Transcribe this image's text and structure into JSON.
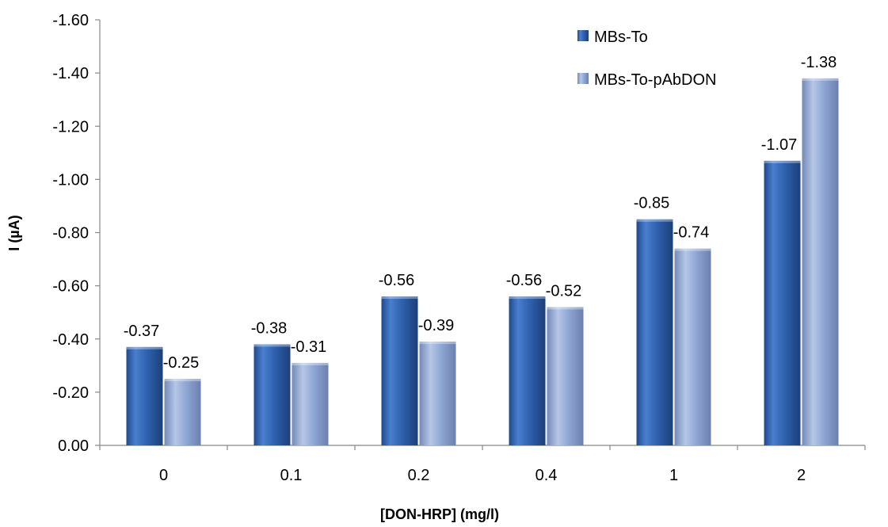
{
  "chart_data": {
    "type": "bar",
    "title": "",
    "xlabel": "[DON-HRP] (mg/l)",
    "ylabel": "I (µA)",
    "categories": [
      "0",
      "0.1",
      "0.2",
      "0.4",
      "1",
      "2"
    ],
    "series": [
      {
        "name": "MBs-To",
        "values": [
          -0.37,
          -0.38,
          -0.56,
          -0.56,
          -0.85,
          -1.07
        ],
        "labels": [
          "-0.37",
          "-0.38",
          "-0.56",
          "-0.56",
          "-0.85",
          "-1.07"
        ],
        "color": "#2f62b0"
      },
      {
        "name": "MBs-To-pAbDON",
        "values": [
          -0.25,
          -0.31,
          -0.39,
          -0.52,
          -0.74,
          -1.38
        ],
        "labels": [
          "-0.25",
          "-0.31",
          "-0.39",
          "-0.52",
          "-0.74",
          "-1.38"
        ],
        "color": "#8fa6d4"
      }
    ],
    "ylim": [
      0,
      -1.6
    ],
    "yticks": [
      "0.00",
      "-0.20",
      "-0.40",
      "-0.60",
      "-0.80",
      "-1.00",
      "-1.20",
      "-1.40",
      "-1.60"
    ],
    "grid": false,
    "legend_position": "top-right"
  }
}
